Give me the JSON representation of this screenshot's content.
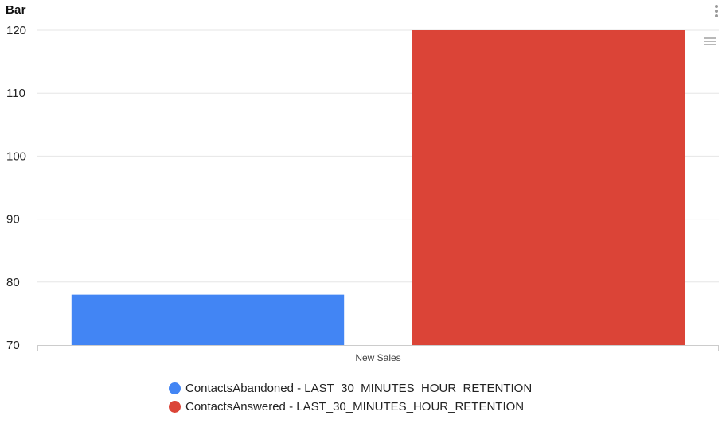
{
  "widget": {
    "title": "Bar"
  },
  "chart_data": {
    "type": "bar",
    "categories": [
      "New Sales"
    ],
    "series": [
      {
        "name": "ContactsAbandoned - LAST_30_MINUTES_HOUR_RETENTION",
        "values": [
          78
        ],
        "color": "#4285f4"
      },
      {
        "name": "ContactsAnswered - LAST_30_MINUTES_HOUR_RETENTION",
        "values": [
          120
        ],
        "color": "#db4437"
      }
    ],
    "title": "",
    "xlabel": "",
    "ylabel": "",
    "ylim": [
      70,
      120
    ],
    "yticks": [
      70,
      80,
      90,
      100,
      110,
      120
    ],
    "grid": true,
    "legend_position": "bottom-center"
  },
  "icons": {
    "widget_menu": "kebab-icon",
    "chart_menu": "hamburger-icon"
  }
}
